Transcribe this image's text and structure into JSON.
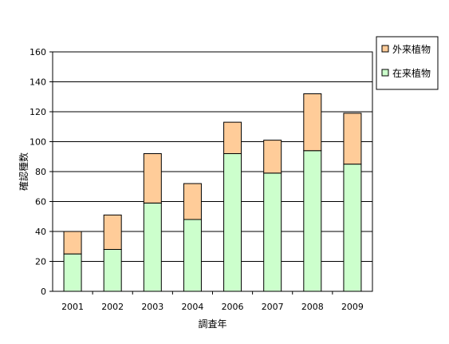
{
  "chart_data": {
    "type": "bar",
    "stacked": true,
    "categories": [
      "2001",
      "2002",
      "2003",
      "2004",
      "2006",
      "2007",
      "2008",
      "2009"
    ],
    "series": [
      {
        "name": "在来植物",
        "color": "#ccffcc",
        "values": [
          25,
          28,
          59,
          48,
          92,
          79,
          94,
          85
        ]
      },
      {
        "name": "外来植物",
        "color": "#ffcc99",
        "values": [
          15,
          23,
          33,
          24,
          21,
          22,
          38,
          34
        ]
      }
    ],
    "title": "",
    "xlabel": "調査年",
    "ylabel": "確認種数",
    "ylim": [
      0,
      160
    ],
    "yticks": [
      0,
      20,
      40,
      60,
      80,
      100,
      120,
      140,
      160
    ],
    "grid": true,
    "legend_position": "top-right",
    "legend_order": [
      "外来植物",
      "在来植物"
    ]
  }
}
